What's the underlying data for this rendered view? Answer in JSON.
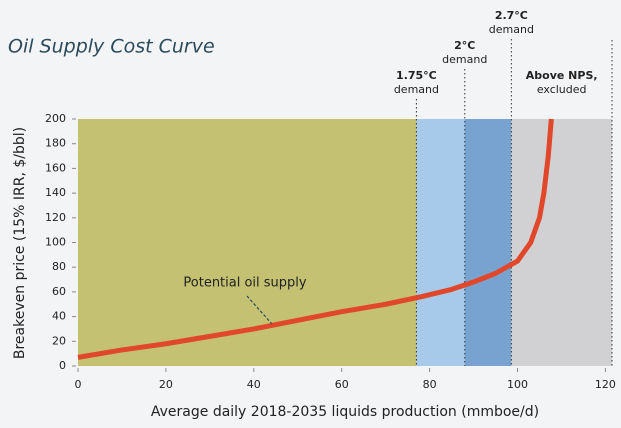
{
  "chart_data": {
    "type": "line",
    "title": "Oil Supply Cost Curve",
    "x_label": "Average daily 2018-2035 liquids production (mmboe/d)",
    "y_label": "Breakeven price (15% IRR, $/bbl)",
    "xlim": [
      0,
      121.5
    ],
    "ylim": [
      0,
      200
    ],
    "xticks": [
      0,
      20,
      40,
      60,
      80,
      100,
      120
    ],
    "yticks": [
      0,
      20,
      40,
      60,
      80,
      100,
      120,
      140,
      160,
      180,
      200
    ],
    "demand_lines": [
      {
        "label": "1.75°C",
        "sublabel": "demand",
        "x": 77
      },
      {
        "label": "2°C",
        "sublabel": "demand",
        "x": 88
      },
      {
        "label": "2.7°C",
        "sublabel": "demand",
        "x": 98.6
      }
    ],
    "region_colors": [
      "#c4c172",
      "#a8caea",
      "#78a2cf",
      "#d1d1d3"
    ],
    "excluded_label": "Above NPS,",
    "excluded_sublabel": "excluded",
    "series": [
      {
        "name": "Potential oil supply",
        "color": "#e0472b",
        "x": [
          0,
          10,
          20,
          30,
          40,
          50,
          60,
          70,
          78,
          85,
          90,
          95,
          100,
          103,
          105,
          106,
          107,
          107.7
        ],
        "values": [
          7,
          13,
          18,
          24,
          30,
          37,
          44,
          50,
          56,
          62,
          68,
          75,
          85,
          100,
          120,
          140,
          170,
          200
        ]
      }
    ]
  }
}
